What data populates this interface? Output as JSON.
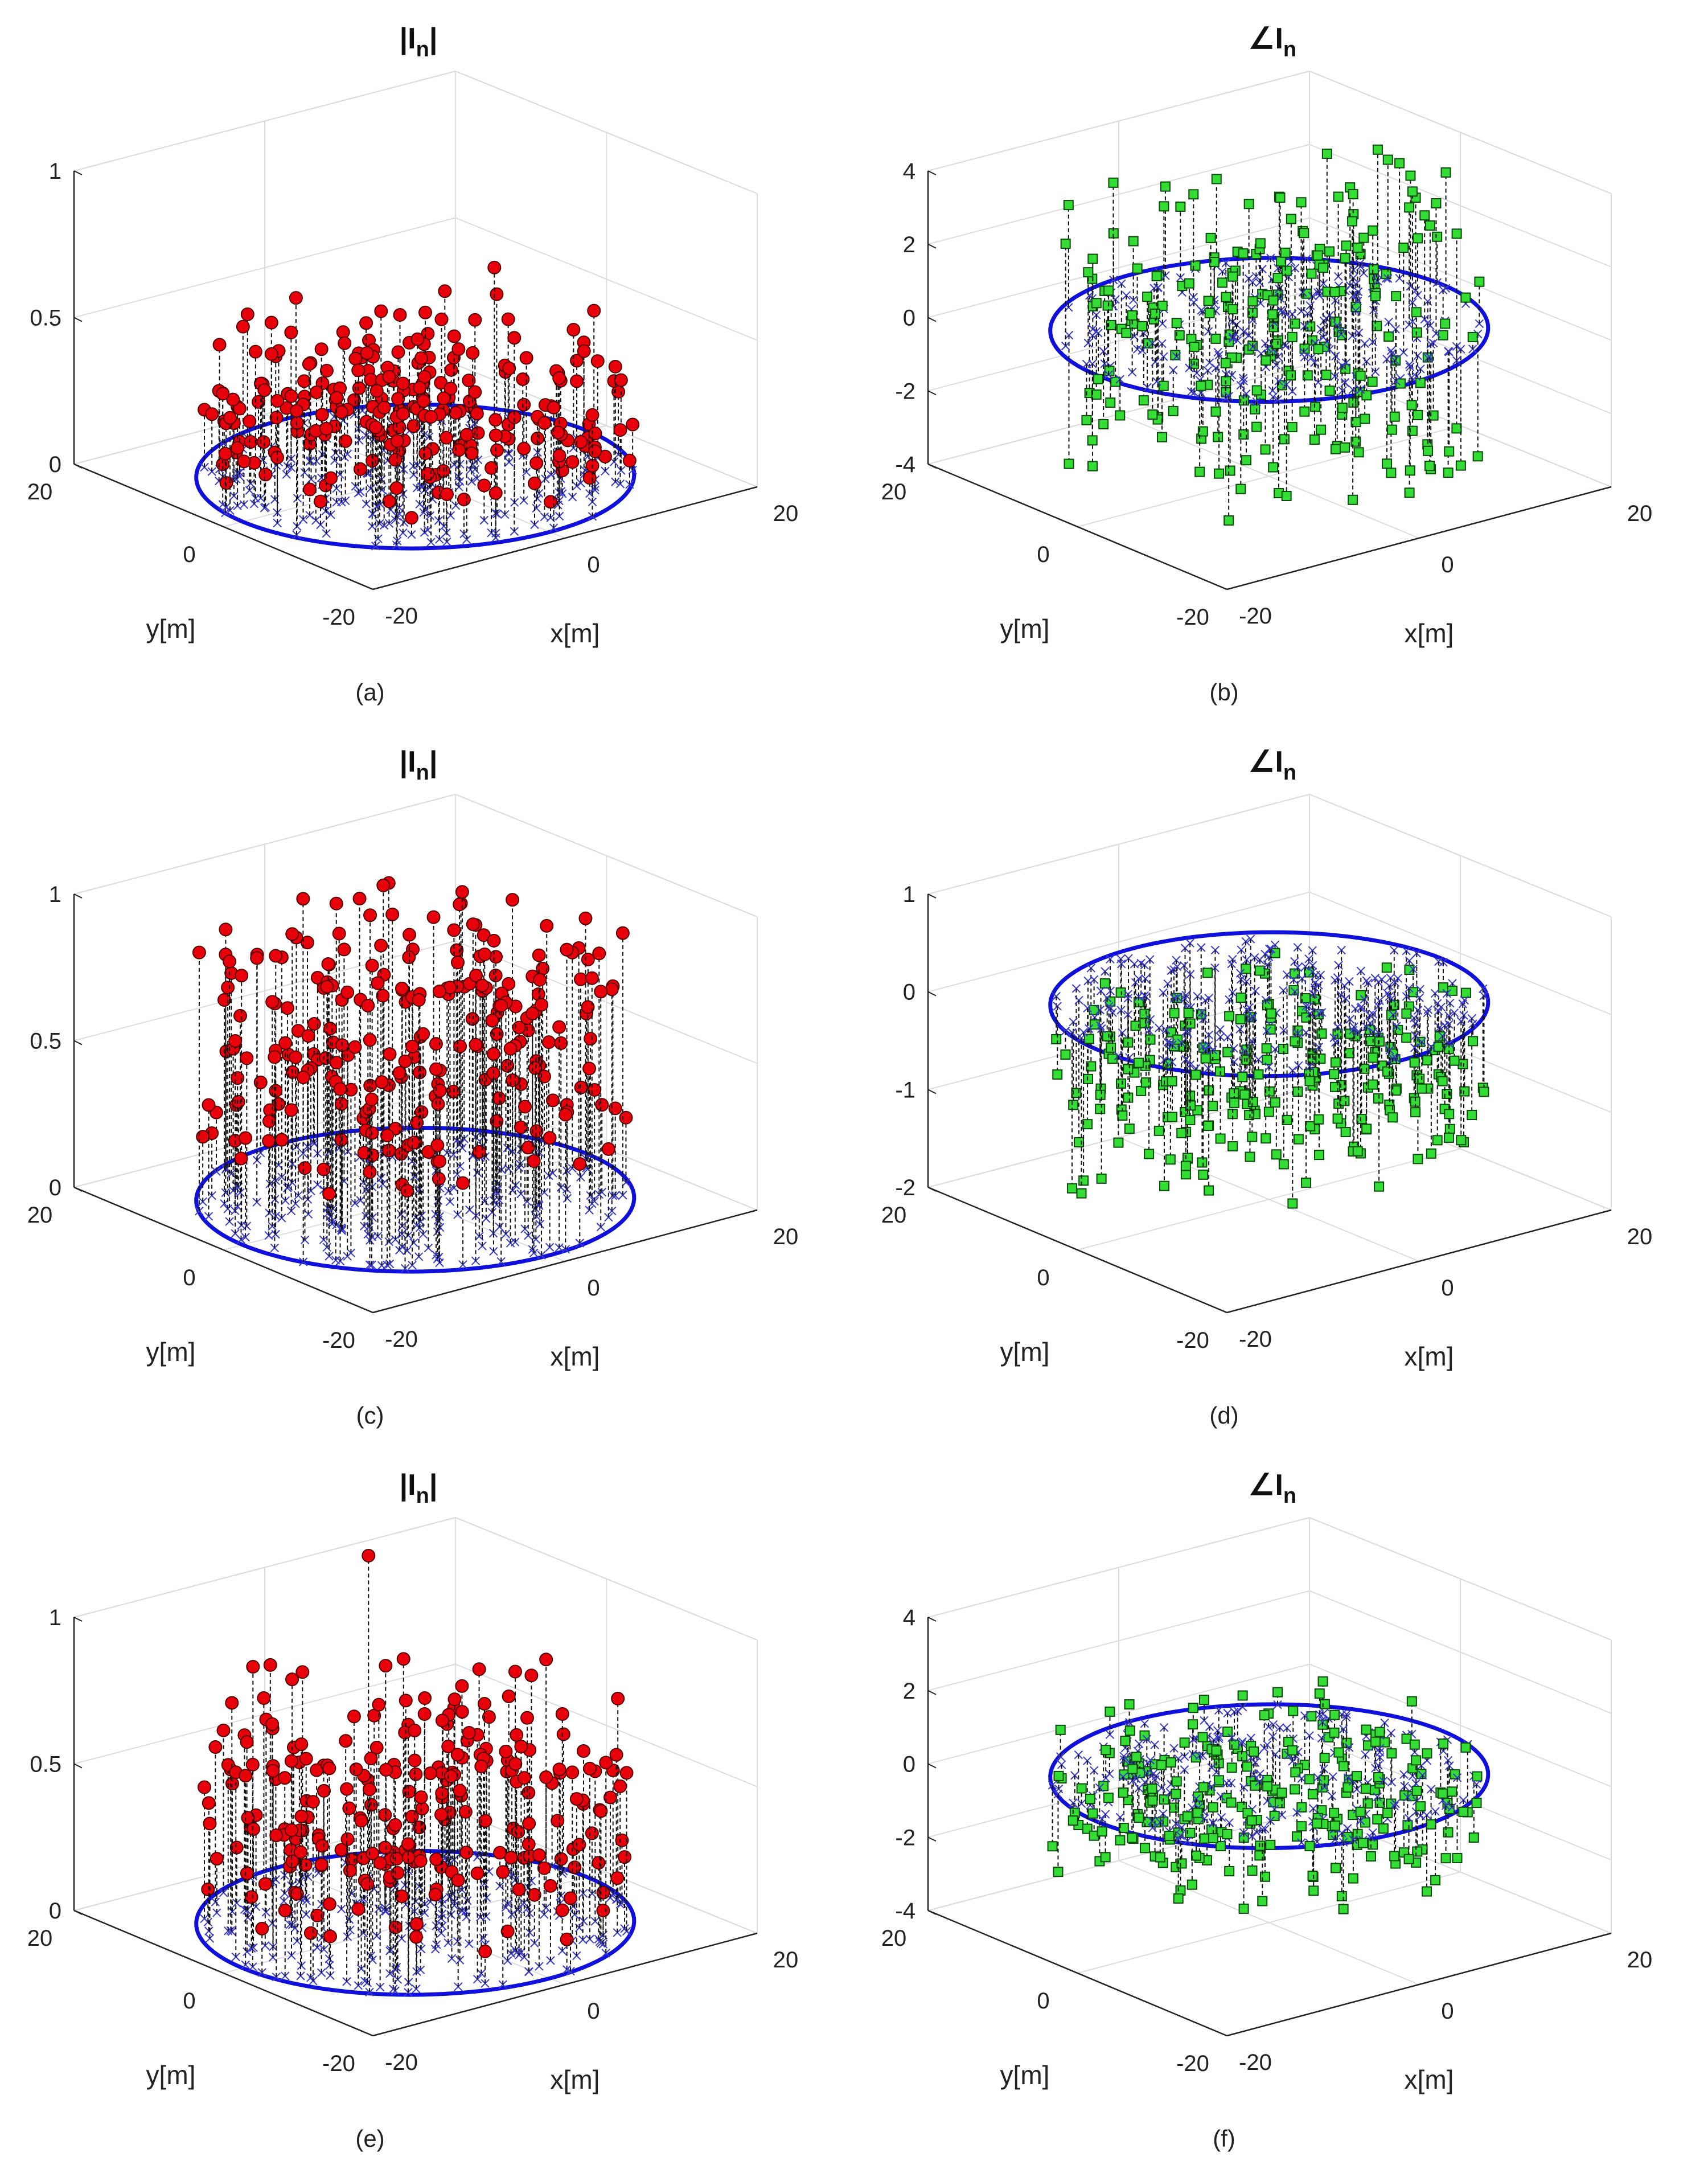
{
  "figure": {
    "labels": [
      "(a)",
      "(b)",
      "(c)",
      "(d)",
      "(e)",
      "(f)"
    ]
  },
  "chart_data": [
    {
      "type": "scatter",
      "subtype": "3d-stem",
      "label": "(a)",
      "title": "|I_n|",
      "title_main": "|I",
      "title_sub": "n",
      "title_tail": "|",
      "xlabel": "x[m]",
      "ylabel": "y[m]",
      "xticks": [
        "-20",
        "0",
        "20"
      ],
      "yticks": [
        "-20",
        "0",
        "20"
      ],
      "zlim": [
        0,
        1
      ],
      "zticks": [
        "0",
        "0.5",
        "1"
      ],
      "array_radius_m": 18,
      "element_count": 256,
      "marker": "circle",
      "marker_color": "#e8000b",
      "stem_style": "dashed",
      "z_spread": "amplitude 0.05–0.45, isolated peaks near 0.78, 0.66 and 0.50",
      "peaks": [
        0.78,
        0.66,
        0.5
      ],
      "seed": 11
    },
    {
      "type": "scatter",
      "subtype": "3d-stem",
      "label": "(b)",
      "title": "∠I_n",
      "title_main": "∠I",
      "title_sub": "n",
      "title_tail": "",
      "xlabel": "x[m]",
      "ylabel": "y[m]",
      "xticks": [
        "-20",
        "0",
        "20"
      ],
      "yticks": [
        "-20",
        "0",
        "20"
      ],
      "zlim": [
        -4,
        4
      ],
      "zticks": [
        "-4",
        "-2",
        "0",
        "2",
        "4"
      ],
      "array_radius_m": 18,
      "element_count": 256,
      "marker": "square",
      "marker_color": "#33dd33",
      "stem_style": "dashed",
      "z_spread": "phase spread over -3.5 to 3.5 rad",
      "peaks": [],
      "seed": 23
    },
    {
      "type": "scatter",
      "subtype": "3d-stem",
      "label": "(c)",
      "title": "|I_n|",
      "title_main": "|I",
      "title_sub": "n",
      "title_tail": "|",
      "xlabel": "x[m]",
      "ylabel": "y[m]",
      "xticks": [
        "-20",
        "0",
        "20"
      ],
      "yticks": [
        "-20",
        "0",
        "20"
      ],
      "zlim": [
        0,
        1
      ],
      "zticks": [
        "0",
        "0.5",
        "1"
      ],
      "array_radius_m": 18,
      "element_count": 256,
      "marker": "circle",
      "marker_color": "#e8000b",
      "stem_style": "dashed",
      "z_spread": "amplitude 0.2–0.9",
      "peaks": [
        0.9,
        0.86
      ],
      "seed": 37
    },
    {
      "type": "scatter",
      "subtype": "3d-stem",
      "label": "(d)",
      "title": "∠I_n",
      "title_main": "∠I",
      "title_sub": "n",
      "title_tail": "",
      "xlabel": "x[m]",
      "ylabel": "y[m]",
      "xticks": [
        "-20",
        "0",
        "20"
      ],
      "yticks": [
        "-20",
        "0",
        "20"
      ],
      "zlim": [
        -2,
        1
      ],
      "zticks": [
        "-2",
        "-1",
        "0",
        "1"
      ],
      "array_radius_m": 18,
      "element_count": 256,
      "marker": "square",
      "marker_color": "#33dd33",
      "stem_style": "dashed",
      "z_spread": "phase -1.6 to 0, two outliers near -1.8",
      "peaks": [],
      "seed": 51
    },
    {
      "type": "scatter",
      "subtype": "3d-stem",
      "label": "(e)",
      "title": "|I_n|",
      "title_main": "|I",
      "title_sub": "n",
      "title_tail": "|",
      "xlabel": "x[m]",
      "ylabel": "y[m]",
      "xticks": [
        "-20",
        "0",
        "20"
      ],
      "yticks": [
        "-20",
        "0",
        "20"
      ],
      "zlim": [
        0,
        1
      ],
      "zticks": [
        "0",
        "0.5",
        "1"
      ],
      "array_radius_m": 18,
      "element_count": 256,
      "marker": "circle",
      "marker_color": "#e8000b",
      "stem_style": "dashed",
      "z_spread": "amplitude 0.1–0.75, one peak near 1.1",
      "peaks": [
        1.1,
        0.78,
        0.74
      ],
      "seed": 67
    },
    {
      "type": "scatter",
      "subtype": "3d-stem",
      "label": "(f)",
      "title": "∠I_n",
      "title_main": "∠I",
      "title_sub": "n",
      "title_tail": "",
      "xlabel": "x[m]",
      "ylabel": "y[m]",
      "xticks": [
        "-20",
        "0",
        "20"
      ],
      "yticks": [
        "-20",
        "0",
        "20"
      ],
      "zlim": [
        -4,
        4
      ],
      "zticks": [
        "-4",
        "-2",
        "0",
        "2",
        "4"
      ],
      "array_radius_m": 18,
      "element_count": 256,
      "marker": "square",
      "marker_color": "#33dd33",
      "stem_style": "dashed",
      "z_spread": "phase -2 to 1, two outliers near 2.5",
      "peaks": [],
      "seed": 79
    }
  ],
  "colors": {
    "circle": "#1010dd",
    "cross": "#3a3acc",
    "grid": "#dddddd",
    "axis": "#222222"
  }
}
